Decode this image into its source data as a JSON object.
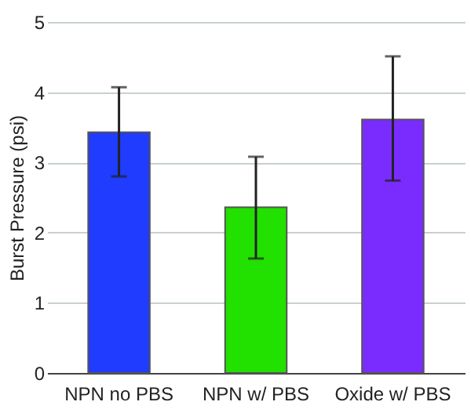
{
  "chart_data": {
    "type": "bar",
    "ylabel": "Burst Pressure (psi)",
    "categories": [
      "NPN no PBS",
      "NPN w/ PBS",
      "Oxide w/ PBS"
    ],
    "values": [
      3.43,
      2.36,
      3.61
    ],
    "colors": [
      "#1f3cff",
      "#22e000",
      "#7a2cff"
    ],
    "errors": [
      [
        2.8,
        4.07
      ],
      [
        1.63,
        3.08
      ],
      [
        2.74,
        4.51
      ]
    ],
    "ylim": [
      0,
      5
    ],
    "yticks": [
      0,
      1,
      2,
      3,
      4,
      5
    ],
    "grid": "y"
  }
}
